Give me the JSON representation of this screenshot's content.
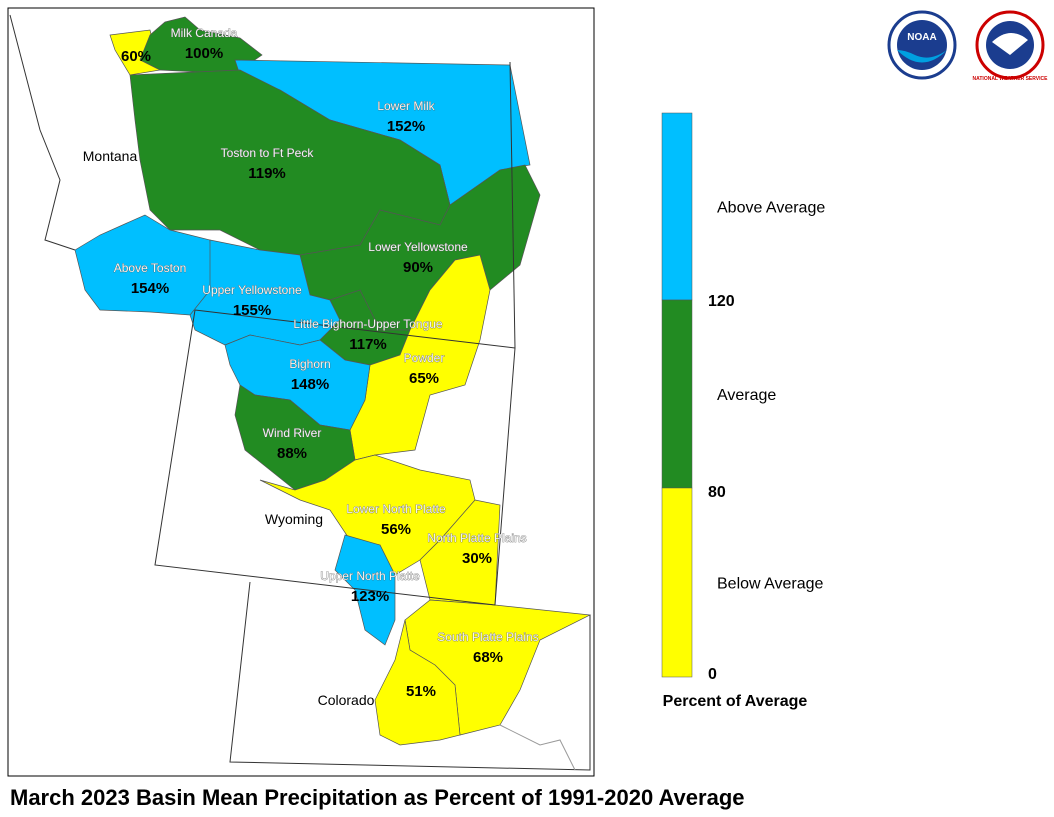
{
  "title": "March 2023 Basin Mean Precipitation as Percent of 1991-2020 Average",
  "states": [
    "Montana",
    "Wyoming",
    "Colorado"
  ],
  "basins": [
    {
      "name": null,
      "label": "60%",
      "color": "#ffff00"
    },
    {
      "name": "Milk Canada",
      "label": "100%",
      "color": "#228b22"
    },
    {
      "name": "Lower Milk",
      "label": "152%",
      "color": "#00bfff"
    },
    {
      "name": "Toston to Ft Peck",
      "label": "119%",
      "color": "#228b22"
    },
    {
      "name": "Lower Yellowstone",
      "label": "90%",
      "color": "#228b22"
    },
    {
      "name": "Above Toston",
      "label": "154%",
      "color": "#00bfff"
    },
    {
      "name": "Upper Yellowstone",
      "label": "155%",
      "color": "#00bfff"
    },
    {
      "name": "Little Bighorn-Upper Tongue",
      "label": "117%",
      "color": "#228b22"
    },
    {
      "name": "Powder",
      "label": "65%",
      "color": "#ffff00"
    },
    {
      "name": "Bighorn",
      "label": "148%",
      "color": "#00bfff"
    },
    {
      "name": "Wind River",
      "label": "88%",
      "color": "#228b22"
    },
    {
      "name": "Lower North Platte",
      "label": "56%",
      "color": "#ffff00"
    },
    {
      "name": "North Platte Plains",
      "label": "30%",
      "color": "#ffff00"
    },
    {
      "name": "Upper North Platte",
      "label": "123%",
      "color": "#00bfff"
    },
    {
      "name": "South Platte Plains",
      "label": "68%",
      "color": "#ffff00"
    },
    {
      "name": null,
      "label": "51%",
      "color": "#ffff00"
    }
  ],
  "legend": {
    "title": "Percent of Average",
    "classes": [
      {
        "label": "Above Average",
        "color": "#00bfff"
      },
      {
        "label": "Average",
        "color": "#228b22"
      },
      {
        "label": "Below Average",
        "color": "#ffff00"
      }
    ],
    "ticks": [
      "120",
      "80",
      "0"
    ]
  },
  "logos": {
    "noaa": "NOAA",
    "nws": "NATIONAL WEATHER SERVICE"
  }
}
